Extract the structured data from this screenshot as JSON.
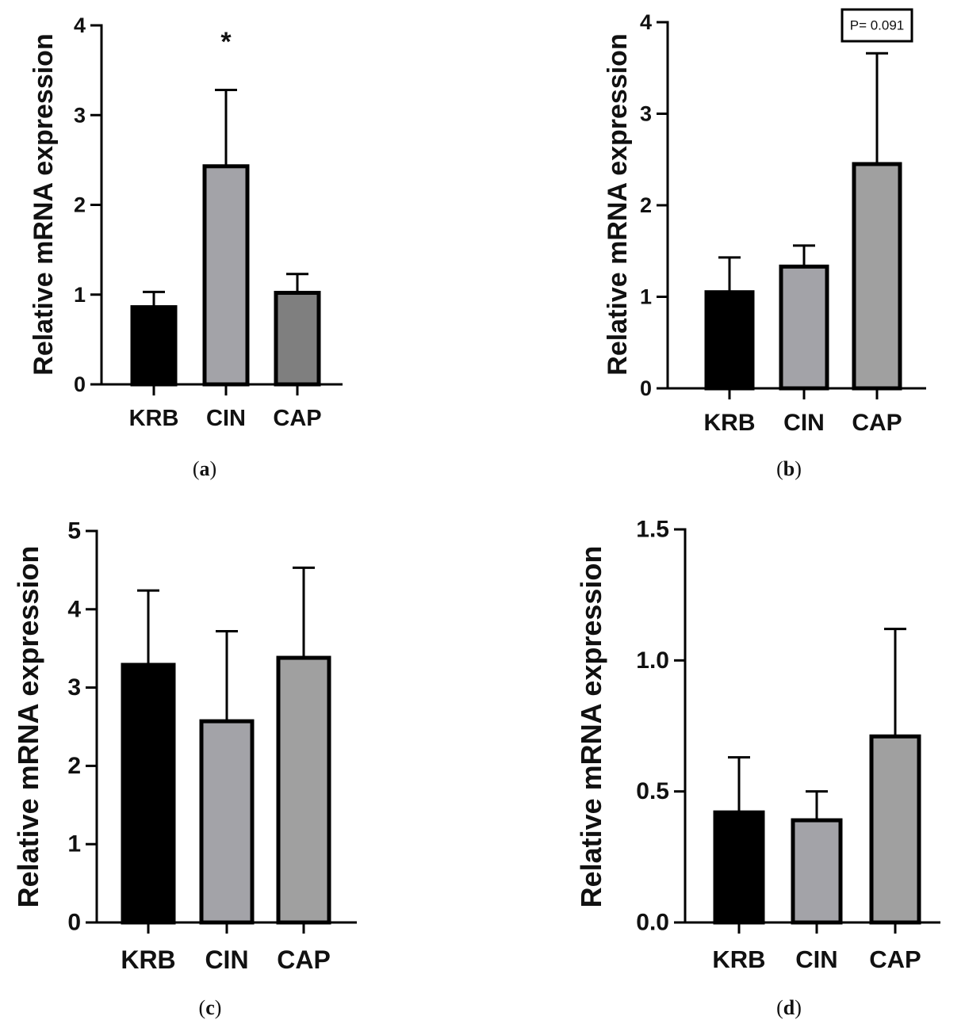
{
  "chart_data": [
    {
      "type": "bar",
      "panel": "(a)",
      "panel_letter": "a",
      "categories": [
        "KRB",
        "CIN",
        "CAP"
      ],
      "values": [
        0.86,
        2.43,
        1.02
      ],
      "errors": [
        0.17,
        0.85,
        0.21
      ],
      "colors": [
        "#000000",
        "#a3a3a8",
        "#7f7f7f"
      ],
      "ylabel": "Relative mRNA expression",
      "ylim": [
        0,
        4
      ],
      "yticks": [
        0,
        1,
        2,
        3,
        4
      ],
      "ytick_labels": [
        "0",
        "1",
        "2",
        "3",
        "4"
      ],
      "annotations": [
        {
          "category": "CIN",
          "text": "*"
        }
      ]
    },
    {
      "type": "bar",
      "panel": "(b)",
      "panel_letter": "b",
      "categories": [
        "KRB",
        "CIN",
        "CAP"
      ],
      "values": [
        1.05,
        1.33,
        2.45
      ],
      "errors": [
        0.38,
        0.23,
        1.21
      ],
      "colors": [
        "#000000",
        "#a3a3a8",
        "#a0a0a0"
      ],
      "ylabel": "Relative mRNA expression",
      "ylim": [
        0,
        4
      ],
      "yticks": [
        0,
        1,
        2,
        3,
        4
      ],
      "ytick_labels": [
        "0",
        "1",
        "2",
        "3",
        "4"
      ],
      "annotations": [
        {
          "category": "CAP",
          "text": "P= 0.091",
          "boxed": true
        }
      ]
    },
    {
      "type": "bar",
      "panel": "(c)",
      "panel_letter": "c",
      "categories": [
        "KRB",
        "CIN",
        "CAP"
      ],
      "values": [
        3.29,
        2.57,
        3.38
      ],
      "errors": [
        0.95,
        1.15,
        1.15
      ],
      "colors": [
        "#000000",
        "#a3a3a8",
        "#a0a0a0"
      ],
      "ylabel": "Relative mRNA expression",
      "ylim": [
        0,
        5
      ],
      "yticks": [
        0,
        1,
        2,
        3,
        4,
        5
      ],
      "ytick_labels": [
        "0",
        "1",
        "2",
        "3",
        "4",
        "5"
      ],
      "annotations": []
    },
    {
      "type": "bar",
      "panel": "(d)",
      "panel_letter": "d",
      "categories": [
        "KRB",
        "CIN",
        "CAP"
      ],
      "values": [
        0.42,
        0.39,
        0.71
      ],
      "errors": [
        0.21,
        0.11,
        0.41
      ],
      "colors": [
        "#000000",
        "#a3a3a8",
        "#a0a0a0"
      ],
      "ylabel": "Relative mRNA expression",
      "ylim": [
        0,
        1.5
      ],
      "yticks": [
        0,
        0.5,
        1.0,
        1.5
      ],
      "ytick_labels": [
        "0.0",
        "0.5",
        "1.0",
        "1.5"
      ],
      "annotations": []
    }
  ]
}
